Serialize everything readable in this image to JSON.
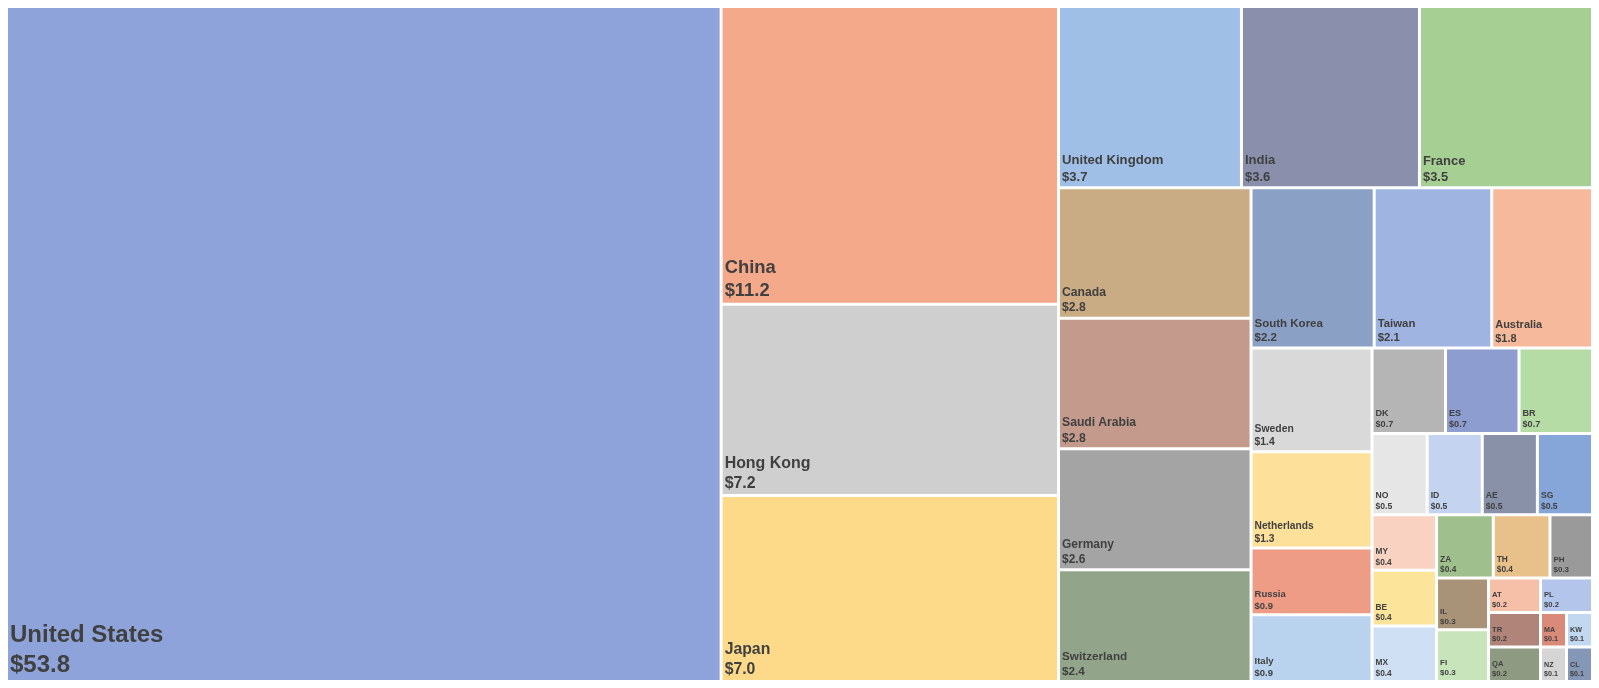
{
  "chart_data": {
    "type": "other",
    "categories": [
      "United States",
      "China",
      "Hong Kong",
      "Japan",
      "United Kingdom",
      "India",
      "France",
      "Saudi Arabia",
      "Canada",
      "Germany",
      "Switzerland",
      "South Korea",
      "Taiwan",
      "Australia",
      "Sweden",
      "Netherlands",
      "Italy",
      "Russia",
      "BR",
      "ES",
      "DK",
      "TH",
      "SG",
      "AE",
      "ID",
      "NO",
      "ZA",
      "MX",
      "FI",
      "IL",
      "BE",
      "MY",
      "PH",
      "PL",
      "QA",
      "TR",
      "AT",
      "CL",
      "NZ",
      "KW",
      "MA"
    ],
    "values": [
      53.8,
      11.2,
      7.2,
      7.0,
      3.7,
      3.6,
      3.5,
      2.8,
      2.8,
      2.6,
      2.4,
      2.2,
      2.1,
      1.8,
      1.4,
      1.3,
      0.9,
      0.9,
      0.7,
      0.7,
      0.7,
      0.4,
      0.5,
      0.5,
      0.5,
      0.5,
      0.4,
      0.4,
      0.3,
      0.3,
      0.4,
      0.4,
      0.3,
      0.2,
      0.2,
      0.2,
      0.2,
      0.1,
      0.1,
      0.1,
      0.1
    ],
    "value_labels": [
      "$53.8",
      "$11.2",
      "$7.2",
      "$7.0",
      "$3.7",
      "$3.6",
      "$3.5",
      "$2.8",
      "$2.8",
      "$2.6",
      "$2.4",
      "$2.2",
      "$2.1",
      "$1.8",
      "$1.4",
      "$1.3",
      "$0.9",
      "$0.9",
      "$0.7",
      "$0.7",
      "$0.7",
      "$0.4",
      "$0.5",
      "$0.5",
      "$0.5",
      "$0.5",
      "$0.4",
      "$0.4",
      "$0.3",
      "$0.3",
      "$0.4",
      "$0.4",
      "$0.3",
      "$0.2",
      "$0.2",
      "$0.2",
      "$0.2",
      "$0.1",
      "$0.1",
      "$0.1",
      "$0.1"
    ],
    "colors": [
      "#8ea3d9",
      "#f4a98a",
      "#cfcfcf",
      "#fdd98a",
      "#9fbfe6",
      "#8a90ab",
      "#a6cf93",
      "#c49a8c",
      "#c9ab84",
      "#a4a4a4",
      "#92a58a",
      "#8aa0c4",
      "#9fb4e0",
      "#f7b99b",
      "#d9d9d9",
      "#fde09a",
      "#b9d2ee",
      "#ee9c86",
      "#b6dca6",
      "#8d9dcf",
      "#b5b5b5",
      "#e8c08a",
      "#86a6da",
      "#8891a8",
      "#c4d4f0",
      "#e6e6e6",
      "#9fc08d",
      "#cfe0f4",
      "#c7e4bb",
      "#a99378",
      "#fde49b",
      "#f9d2c2",
      "#9a9a9a",
      "#b3c5ea",
      "#8e9a82",
      "#b08478",
      "#f6bfa8",
      "#8597b6",
      "#d5d5d5",
      "#c2d8f0",
      "#d98a78"
    ]
  }
}
